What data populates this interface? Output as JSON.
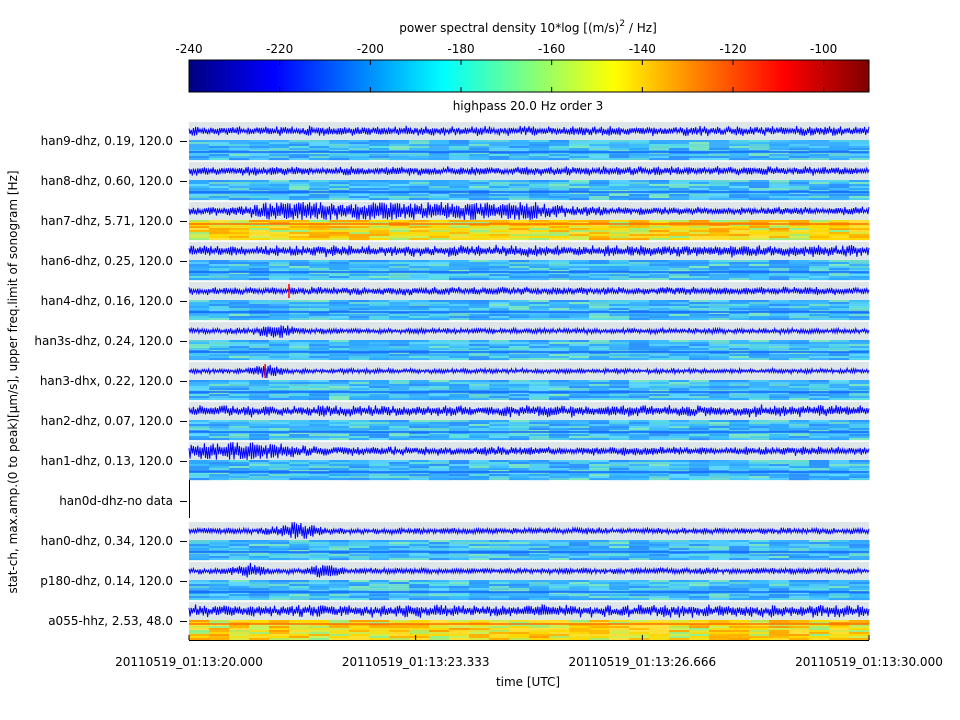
{
  "colorbar": {
    "title": "power spectral density 10*log [(m/s)",
    "title_sup": "2",
    "title_end": " / Hz]",
    "ticks": [
      "-240",
      "-220",
      "-200",
      "-180",
      "-160",
      "-140",
      "-120",
      "-100"
    ],
    "tick_values": [
      -240,
      -220,
      -200,
      -180,
      -160,
      -140,
      -120,
      -100
    ],
    "range": [
      -240,
      -90
    ],
    "colors": [
      "#00007f",
      "#0000ff",
      "#007fff",
      "#00ffff",
      "#7fff7f",
      "#ffff00",
      "#ff7f00",
      "#ff0000",
      "#7f0000"
    ]
  },
  "chart_data": {
    "type": "heatmap",
    "title": "highpass 20.0 Hz order 3",
    "xlabel": "time [UTC]",
    "ylabel": "stat-ch, max.amp.(0 to peak)[µm/s], upper freq.limit of sonogram [Hz]",
    "x_ticks": [
      "20110519_01:13:20.000",
      "20110519_01:13:23.333",
      "20110519_01:13:26.666",
      "20110519_01:13:30.000"
    ],
    "xlim_seconds": [
      0,
      10
    ],
    "channels": [
      {
        "label": "han9-dhz,  0.19, 120.0",
        "max_amp": 0.19,
        "freq_limit": 120.0,
        "has_data": true
      },
      {
        "label": "han8-dhz,  0.60, 120.0",
        "max_amp": 0.6,
        "freq_limit": 120.0,
        "has_data": true
      },
      {
        "label": "han7-dhz,  5.71, 120.0",
        "max_amp": 5.71,
        "freq_limit": 120.0,
        "has_data": true
      },
      {
        "label": "han6-dhz,  0.25, 120.0",
        "max_amp": 0.25,
        "freq_limit": 120.0,
        "has_data": true
      },
      {
        "label": "han4-dhz,  0.16, 120.0",
        "max_amp": 0.16,
        "freq_limit": 120.0,
        "has_data": true
      },
      {
        "label": "han3s-dhz,  0.24, 120.0",
        "max_amp": 0.24,
        "freq_limit": 120.0,
        "has_data": true
      },
      {
        "label": "han3-dhx,  0.22, 120.0",
        "max_amp": 0.22,
        "freq_limit": 120.0,
        "has_data": true
      },
      {
        "label": "han2-dhz,  0.07, 120.0",
        "max_amp": 0.07,
        "freq_limit": 120.0,
        "has_data": true
      },
      {
        "label": "han1-dhz,  0.13, 120.0",
        "max_amp": 0.13,
        "freq_limit": 120.0,
        "has_data": true
      },
      {
        "label": "han0d-dhz-no data",
        "max_amp": null,
        "freq_limit": null,
        "has_data": false
      },
      {
        "label": "han0-dhz,  0.34, 120.0",
        "max_amp": 0.34,
        "freq_limit": 120.0,
        "has_data": true
      },
      {
        "label": "p180-dhz,  0.14, 120.0",
        "max_amp": 0.14,
        "freq_limit": 120.0,
        "has_data": true
      },
      {
        "label": "a055-hhz,  2.53,  48.0",
        "max_amp": 2.53,
        "freq_limit": 48.0,
        "has_data": true
      }
    ]
  }
}
